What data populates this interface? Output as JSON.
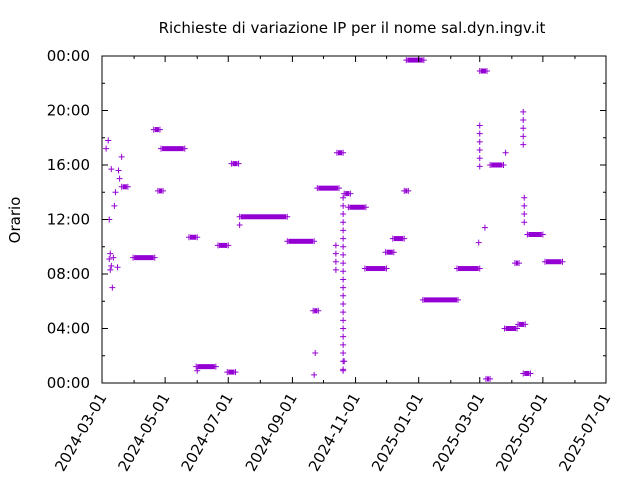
{
  "chart_data": {
    "type": "scatter",
    "title": "Richieste di variazione IP per il nome sal.dyn.ingv.it",
    "xlabel": "",
    "ylabel": "Orario",
    "grid": false,
    "legend": "none",
    "marker": "+",
    "point_color": "#9400d3",
    "x_axis": {
      "type": "date",
      "range": [
        "2024-03-01",
        "2025-07-01"
      ],
      "ticks": [
        "2024-03-01",
        "2024-05-01",
        "2024-07-01",
        "2024-09-01",
        "2024-11-01",
        "2025-01-01",
        "2025-03-01",
        "2025-05-01",
        "2025-07-01"
      ]
    },
    "y_axis": {
      "unit": "hours",
      "range": [
        0,
        24
      ],
      "ticks": [
        0,
        4,
        8,
        12,
        16,
        20,
        24
      ],
      "tick_labels": [
        "00:00",
        "04:00",
        "08:00",
        "12:00",
        "16:00",
        "20:00",
        "00:00"
      ]
    },
    "clusters": [
      {
        "date": "2024-03-05",
        "hour": 17.2
      },
      {
        "date": "2024-03-07",
        "hour": 17.8
      },
      {
        "date": "2024-03-08",
        "hour": 12.0
      },
      {
        "date": "2024-03-08",
        "hour": 9.1
      },
      {
        "date": "2024-03-09",
        "hour": 8.3
      },
      {
        "date": "2024-03-09",
        "hour": 9.5
      },
      {
        "date": "2024-03-10",
        "hour": 15.7
      },
      {
        "date": "2024-03-10",
        "hour": 8.6
      },
      {
        "date": "2024-03-11",
        "hour": 7.0
      },
      {
        "date": "2024-03-12",
        "hour": 9.2
      },
      {
        "date": "2024-03-13",
        "hour": 13.0
      },
      {
        "date": "2024-03-14",
        "hour": 14.0
      },
      {
        "date": "2024-03-16",
        "hour": 8.5
      },
      {
        "date": "2024-03-17",
        "hour": 15.6
      },
      {
        "date": "2024-03-18",
        "hour": 15.0
      },
      {
        "date": "2024-03-20",
        "hour": 16.6
      },
      {
        "date": "2024-03-21",
        "hour": 14.4,
        "end": "2024-03-25"
      },
      {
        "date": "2024-04-01",
        "hour": 9.2,
        "end": "2024-04-20"
      },
      {
        "date": "2024-04-21",
        "hour": 18.6,
        "end": "2024-04-25"
      },
      {
        "date": "2024-04-25",
        "hour": 14.1,
        "end": "2024-04-28"
      },
      {
        "date": "2024-04-28",
        "hour": 17.2,
        "end": "2024-05-19"
      },
      {
        "date": "2024-05-25",
        "hour": 10.7,
        "end": "2024-05-31"
      },
      {
        "date": "2024-06-01",
        "hour": 0.9
      },
      {
        "date": "2024-06-01",
        "hour": 1.2,
        "end": "2024-06-18"
      },
      {
        "date": "2024-06-22",
        "hour": 10.1,
        "end": "2024-06-30"
      },
      {
        "date": "2024-07-01",
        "hour": 0.8,
        "end": "2024-07-07"
      },
      {
        "date": "2024-07-05",
        "hour": 16.1,
        "end": "2024-07-10"
      },
      {
        "date": "2024-07-12",
        "hour": 11.6
      },
      {
        "date": "2024-07-13",
        "hour": 12.2,
        "end": "2024-08-26"
      },
      {
        "date": "2024-08-28",
        "hour": 10.4,
        "end": "2024-09-21"
      },
      {
        "date": "2024-09-22",
        "hour": 5.3,
        "end": "2024-09-25"
      },
      {
        "date": "2024-09-22",
        "hour": 0.6
      },
      {
        "date": "2024-09-23",
        "hour": 2.2
      },
      {
        "date": "2024-09-26",
        "hour": 14.3,
        "end": "2024-10-15"
      },
      {
        "date": "2024-10-13",
        "hour": 8.3,
        "end_hour": 10.4
      },
      {
        "date": "2024-10-15",
        "hour": 16.9,
        "end": "2024-10-19"
      },
      {
        "date": "2024-10-20",
        "hour": 1.0,
        "end_hour": 13.9
      },
      {
        "date": "2024-10-20",
        "hour": 0.9
      },
      {
        "date": "2024-10-21",
        "hour": 1.6
      },
      {
        "date": "2024-10-22",
        "hour": 13.9,
        "end": "2024-10-26"
      },
      {
        "date": "2024-10-26",
        "hour": 12.9,
        "end": "2024-11-10"
      },
      {
        "date": "2024-11-11",
        "hour": 8.4,
        "end": "2024-11-30"
      },
      {
        "date": "2024-12-01",
        "hour": 9.6,
        "end": "2024-12-07"
      },
      {
        "date": "2024-12-08",
        "hour": 10.6,
        "end": "2024-12-17"
      },
      {
        "date": "2024-12-19",
        "hour": 14.1,
        "end": "2024-12-21"
      },
      {
        "date": "2024-12-21",
        "hour": 23.7,
        "end": "2025-01-05"
      },
      {
        "date": "2025-01-06",
        "hour": 6.1,
        "end": "2025-02-07"
      },
      {
        "date": "2025-02-08",
        "hour": 8.4,
        "end": "2025-02-28"
      },
      {
        "date": "2025-02-28",
        "hour": 10.3
      },
      {
        "date": "2025-03-01",
        "hour": 15.9,
        "end_hour": 19.0
      },
      {
        "date": "2025-03-02",
        "hour": 22.9,
        "end": "2025-03-07"
      },
      {
        "date": "2025-03-06",
        "hour": 11.4
      },
      {
        "date": "2025-03-08",
        "hour": 0.3,
        "end": "2025-03-10"
      },
      {
        "date": "2025-03-12",
        "hour": 16.0,
        "end": "2025-03-23"
      },
      {
        "date": "2025-03-26",
        "hour": 16.9
      },
      {
        "date": "2025-03-26",
        "hour": 4.0,
        "end": "2025-04-05"
      },
      {
        "date": "2025-04-05",
        "hour": 8.8,
        "end": "2025-04-07"
      },
      {
        "date": "2025-04-08",
        "hour": 4.3,
        "end": "2025-04-13"
      },
      {
        "date": "2025-04-12",
        "hour": 17.5,
        "end_hour": 19.9
      },
      {
        "date": "2025-04-13",
        "hour": 11.8,
        "end_hour": 13.9
      },
      {
        "date": "2025-04-13",
        "hour": 0.7,
        "end": "2025-04-18"
      },
      {
        "date": "2025-04-17",
        "hour": 10.9,
        "end": "2025-04-30"
      },
      {
        "date": "2025-05-04",
        "hour": 8.9,
        "end": "2025-05-19"
      }
    ]
  }
}
